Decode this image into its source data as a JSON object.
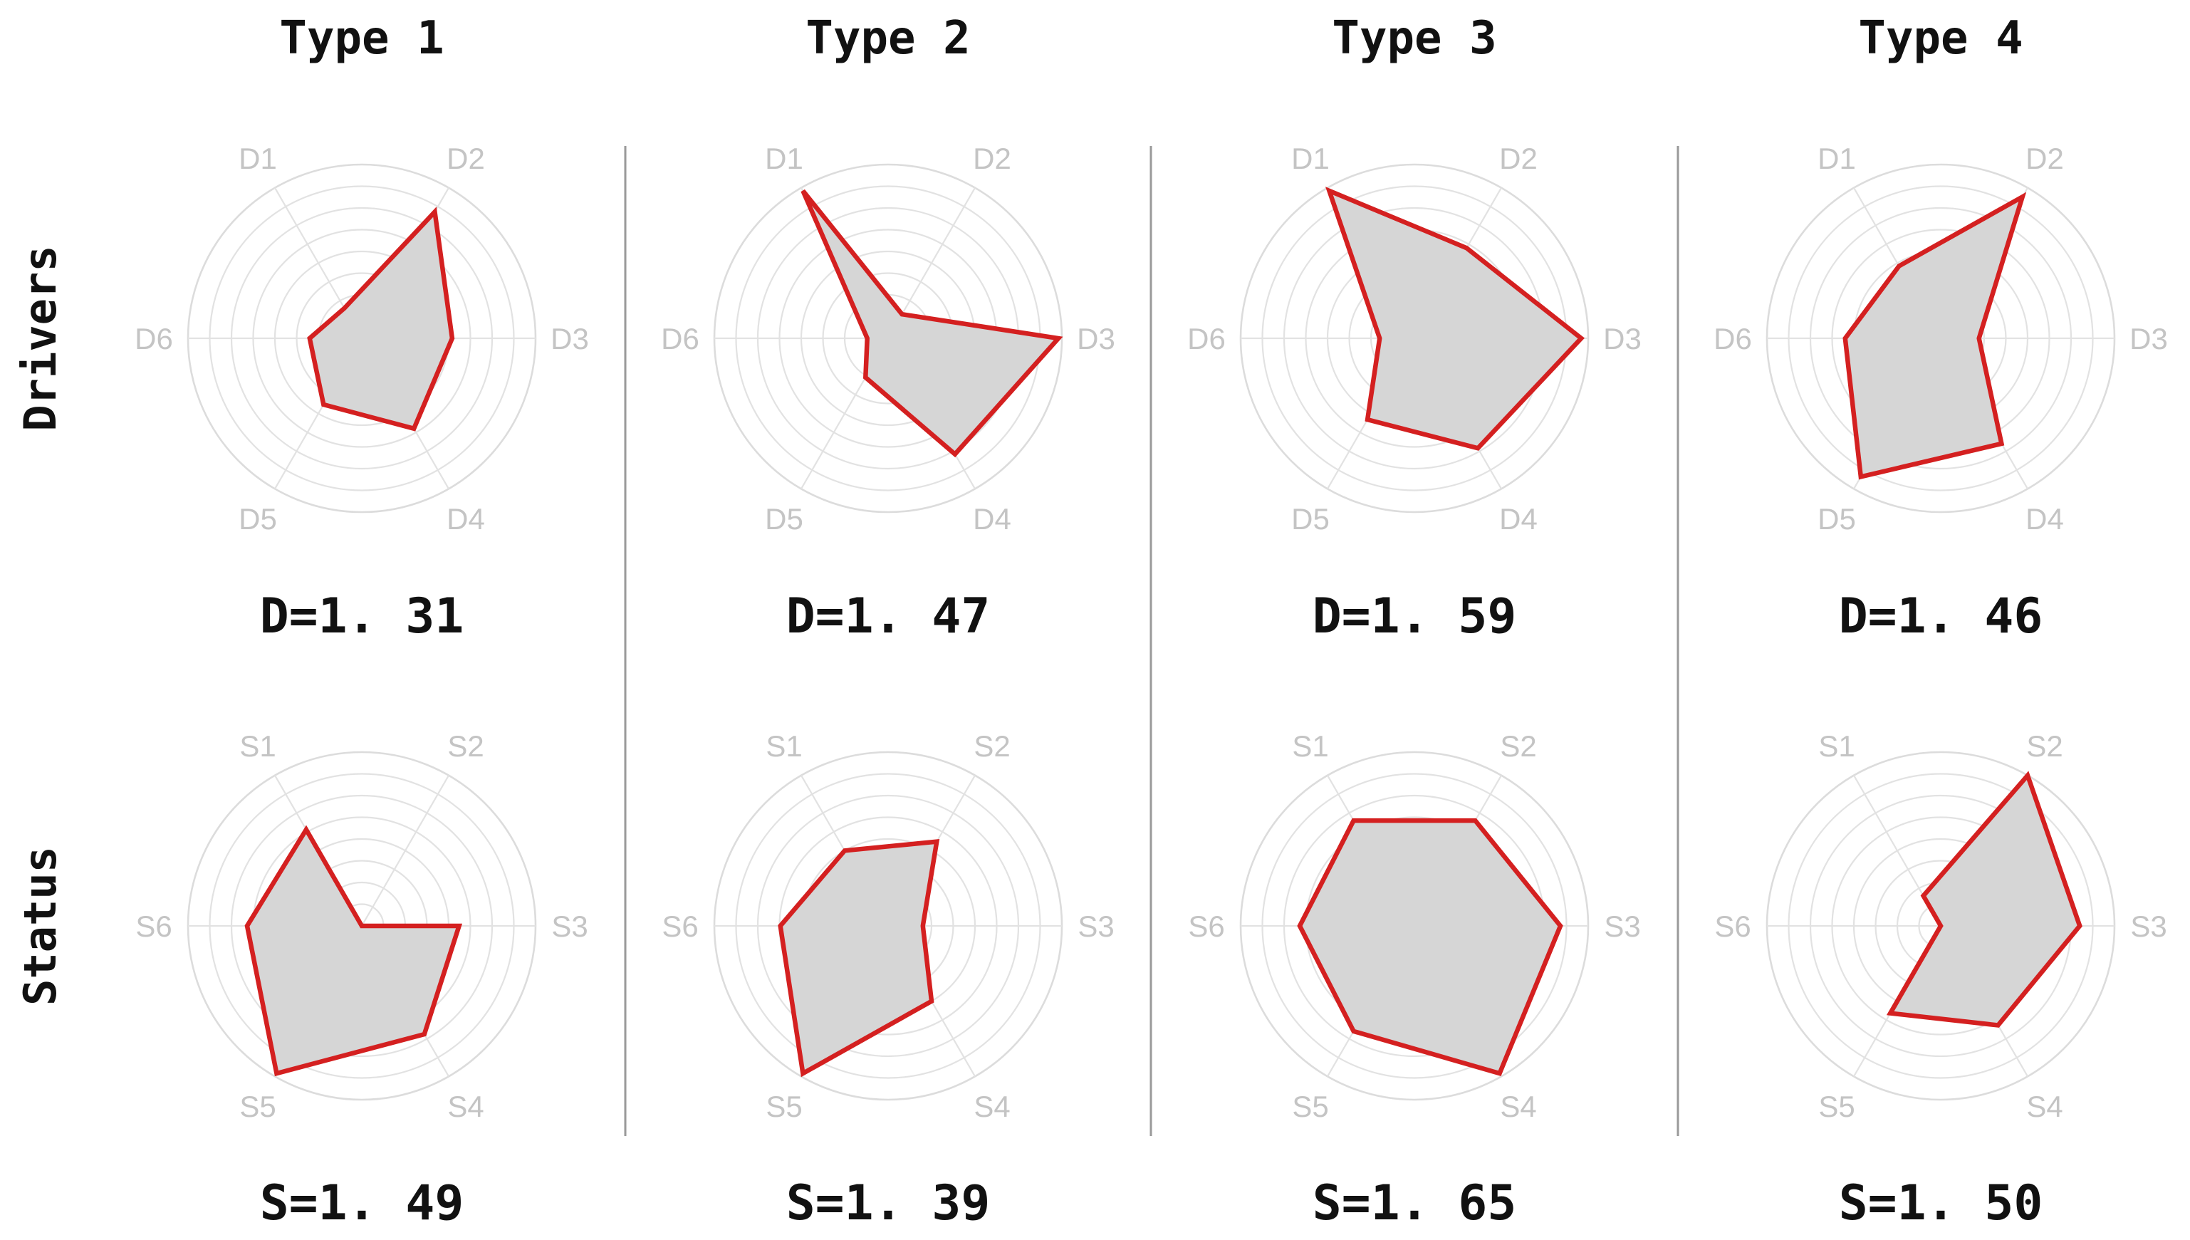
{
  "chart_data": {
    "type": "radar",
    "columns": [
      "Type 1",
      "Type 2",
      "Type 3",
      "Type 4"
    ],
    "rows": [
      {
        "label": "Drivers",
        "axes": [
          "D1",
          "D2",
          "D3",
          "D4",
          "D5",
          "D6"
        ],
        "rmax": 1.0,
        "rings": 8,
        "panels": [
          {
            "type": "Type 1",
            "values": [
              0.2,
              0.84,
              0.52,
              0.6,
              0.44,
              0.3
            ],
            "score": "D=1. 31"
          },
          {
            "type": "Type 2",
            "values": [
              0.98,
              0.16,
              0.98,
              0.77,
              0.26,
              0.12
            ],
            "score": "D=1. 47"
          },
          {
            "type": "Type 3",
            "values": [
              0.98,
              0.6,
              0.96,
              0.73,
              0.54,
              0.2
            ],
            "score": "D=1. 59"
          },
          {
            "type": "Type 4",
            "values": [
              0.48,
              0.94,
              0.22,
              0.7,
              0.92,
              0.55
            ],
            "score": "D=1. 46"
          }
        ]
      },
      {
        "label": "Status",
        "axes": [
          "S1",
          "S2",
          "S3",
          "S4",
          "S5",
          "S6"
        ],
        "rmax": 1.0,
        "rings": 8,
        "panels": [
          {
            "type": "Type 1",
            "values": [
              0.64,
              0.0,
              0.56,
              0.72,
              0.98,
              0.66
            ],
            "score": "S=1. 49"
          },
          {
            "type": "Type 2",
            "values": [
              0.5,
              0.56,
              0.2,
              0.5,
              0.98,
              0.62
            ],
            "score": "S=1. 39"
          },
          {
            "type": "Type 3",
            "values": [
              0.7,
              0.7,
              0.84,
              0.98,
              0.7,
              0.66
            ],
            "score": "S=1. 65"
          },
          {
            "type": "Type 4",
            "values": [
              0.2,
              1.0,
              0.8,
              0.66,
              0.58,
              0.0
            ],
            "score": "S=1. 50"
          }
        ]
      }
    ]
  }
}
